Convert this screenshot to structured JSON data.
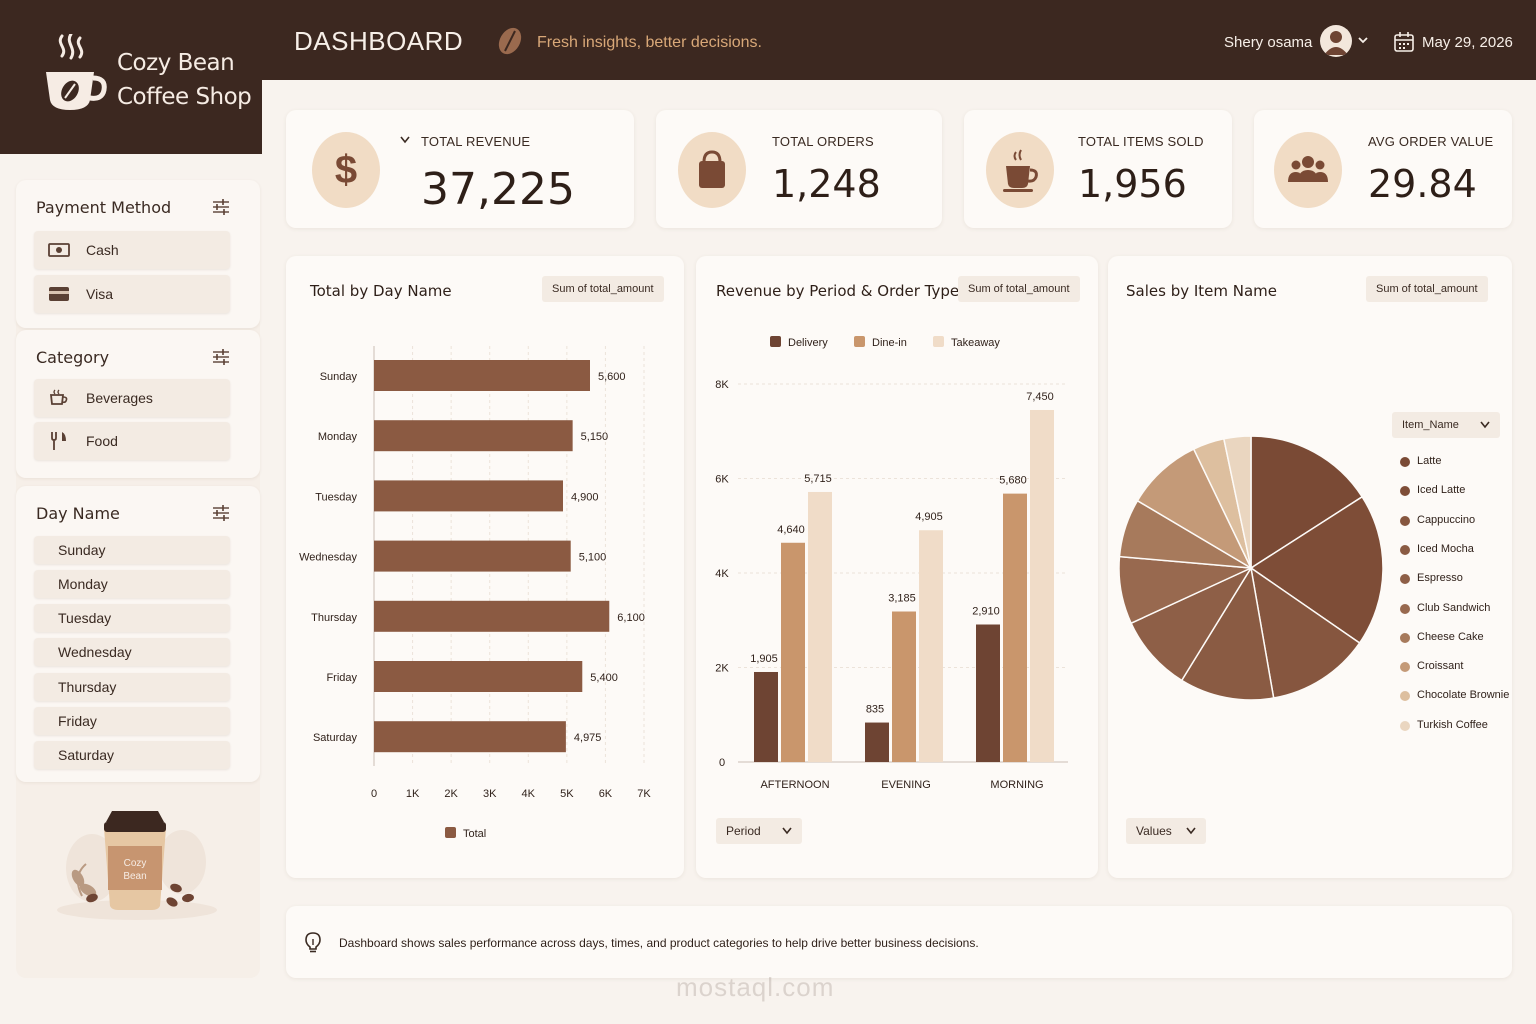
{
  "brand": {
    "line1": "Cozy Bean",
    "line2": "Coffee Shop",
    "mug_label_1": "Cozy",
    "mug_label_2": "Bean"
  },
  "header": {
    "title": "DASHBOARD",
    "tagline": "Fresh insights, better decisions.",
    "user": "Shery osama",
    "date": "May 29, 2026"
  },
  "filters": {
    "payment": {
      "title": "Payment Method",
      "items": [
        "Cash",
        "Visa"
      ]
    },
    "category": {
      "title": "Category",
      "items": [
        "Beverages",
        "Food"
      ]
    },
    "day": {
      "title": "Day Name",
      "items": [
        "Sunday",
        "Monday",
        "Tuesday",
        "Wednesday",
        "Thursday",
        "Friday",
        "Saturday"
      ]
    }
  },
  "kpis": [
    {
      "label": "TOTAL REVENUE",
      "value": "37,225",
      "icon": "dollar-icon"
    },
    {
      "label": "TOTAL ORDERS",
      "value": "1,248",
      "icon": "shopping-bag-icon"
    },
    {
      "label": "TOTAL ITEMS SOLD",
      "value": "1,956",
      "icon": "coffee-cup-icon"
    },
    {
      "label": "AVG ORDER VALUE",
      "value": "29.84",
      "icon": "users-icon"
    }
  ],
  "colors": {
    "dark": "#3c2820",
    "bar": "#8b5a42",
    "delivery": "#6e4433",
    "dinein": "#c9966c",
    "takeaway": "#f0dcc8",
    "accent": "#d9a878"
  },
  "chart_data": [
    {
      "type": "bar",
      "orientation": "horizontal",
      "title": "Total by Day Name",
      "badge": "Sum of total_amount",
      "categories": [
        "Sunday",
        "Monday",
        "Tuesday",
        "Wednesday",
        "Thursday",
        "Friday",
        "Saturday"
      ],
      "series": [
        {
          "name": "Total",
          "values": [
            5600,
            5150,
            4900,
            5100,
            6100,
            5400,
            4975
          ]
        }
      ],
      "data_labels": [
        "5,600",
        "5,150",
        "4,900",
        "5,100",
        "6,100",
        "5,400",
        "4,975"
      ],
      "xlim": [
        0,
        7000
      ],
      "x_ticks": [
        "0",
        "1K",
        "2K",
        "3K",
        "4K",
        "5K",
        "6K",
        "7K"
      ],
      "grid": true,
      "legend": "bottom"
    },
    {
      "type": "bar",
      "orientation": "vertical",
      "title": "Revenue by Period & Order Type",
      "badge": "Sum of total_amount",
      "categories": [
        "AFTERNOON",
        "EVENING",
        "MORNING"
      ],
      "series": [
        {
          "name": "Delivery",
          "values": [
            1905,
            835,
            2910
          ],
          "labels": [
            "1,905",
            "835",
            "2,910"
          ]
        },
        {
          "name": "Dine-in",
          "values": [
            4640,
            3185,
            5680
          ],
          "labels": [
            "4,640",
            "3,185",
            "5,680"
          ]
        },
        {
          "name": "Takeaway",
          "values": [
            5715,
            4905,
            7450
          ],
          "labels": [
            "5,715",
            "4,905",
            "7,450"
          ]
        }
      ],
      "ylim": [
        0,
        8000
      ],
      "y_ticks": [
        "0",
        "2K",
        "4K",
        "6K",
        "8K"
      ],
      "grid": true,
      "legend": "top",
      "dropdown": "Period"
    },
    {
      "type": "pie",
      "title": "Sales by Item Name",
      "badge": "Sum of total_amount",
      "legend_title": "Item_Name",
      "labels": [
        "Latte",
        "Iced Latte",
        "Cappuccino",
        "Iced Mocha",
        "Espresso",
        "Club Sandwich",
        "Cheese Cake",
        "Croissant",
        "Chocolate Brownie",
        "Turkish Coffee"
      ],
      "values": [
        14.5,
        17.0,
        11.5,
        10.5,
        8.5,
        7.5,
        6.5,
        8.5,
        3.5,
        3.0
      ],
      "colors": [
        "#7a4a35",
        "#7e4d37",
        "#86563f",
        "#8a5b43",
        "#8e5f47",
        "#98694f",
        "#a77a5c",
        "#c49a78",
        "#ddbf9f",
        "#ead6c0"
      ],
      "legend": "right",
      "dropdown": "Values"
    }
  ],
  "footer": {
    "note": "Dashboard shows sales performance across days, times, and product categories to help drive better business decisions.",
    "watermark": "mostaql.com"
  }
}
